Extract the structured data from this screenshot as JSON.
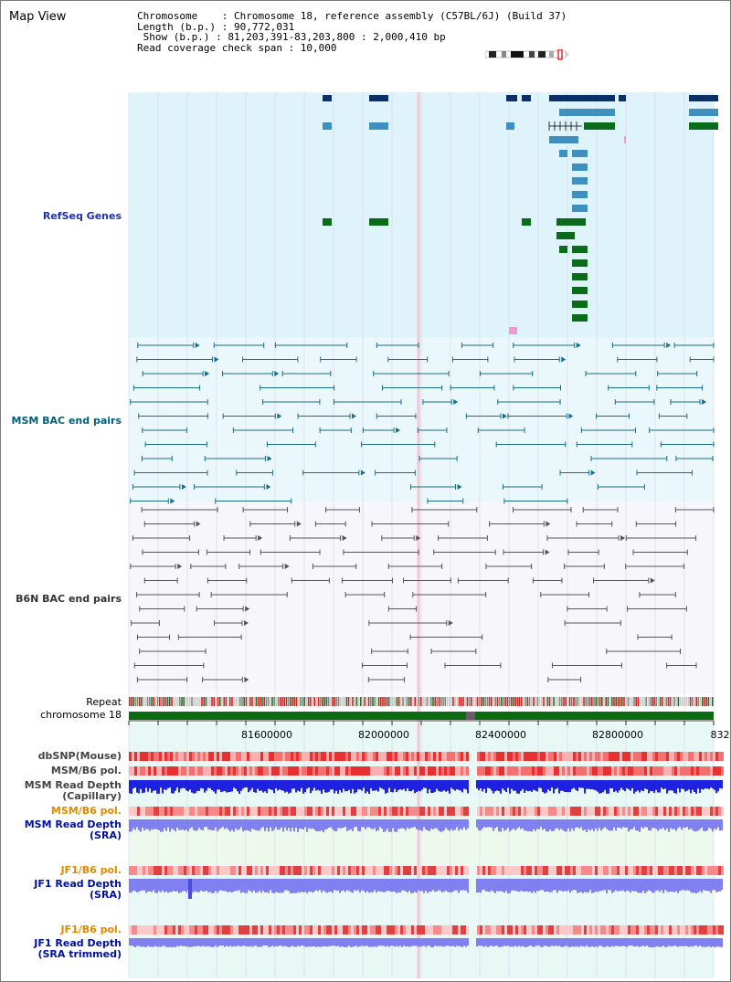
{
  "header": {
    "title": "Map View",
    "info_lines": [
      "Chromosome    : Chromosome 18, reference assembly (C57BL/6J) (Build 37)",
      "Length (b.p.) : 90,772,031",
      " Show (b.p.) : 81,203,391-83,203,800 : 2,000,410 bp",
      "Read coverage check span : 10,000"
    ]
  },
  "tracks": {
    "refseq": "RefSeq Genes",
    "msm_bac": "MSM BAC end pairs",
    "b6n_bac": "B6N BAC end pairs",
    "repeat": "Repeat",
    "chromosome": "chromosome 18",
    "dbsnp": "dbSNP(Mouse)",
    "msm_b6_pol": "MSM/B6 pol.",
    "msm_depth_cap": [
      "MSM Read Depth",
      "(Capillary)"
    ],
    "msm_b6_pol_sra": "MSM/B6 pol.",
    "msm_depth_sra": [
      "MSM Read Depth",
      "(SRA)"
    ],
    "jf1_b6_pol": "JF1/B6 pol.",
    "jf1_depth_sra": [
      "JF1 Read Depth",
      "(SRA)"
    ],
    "jf1_b6_pol_trim": "JF1/B6 pol.",
    "jf1_depth_trim": [
      "JF1 Read Depth",
      "(SRA trimmed)"
    ]
  },
  "axis": {
    "ticks": [
      "81600000",
      "82000000",
      "82400000",
      "82800000",
      "832"
    ]
  },
  "colors": {
    "refseq_bg": "#dff3fa",
    "refseq_dark": "#0b2f66",
    "refseq_mid": "#3f8fbf",
    "refseq_green": "#0a6b1a",
    "bac_msm": "#1a6e86",
    "bac_b6n": "#555555",
    "chrom": "#0a6b10",
    "depth_blue": "#1e22e0",
    "depth_light": "#8080f0"
  }
}
